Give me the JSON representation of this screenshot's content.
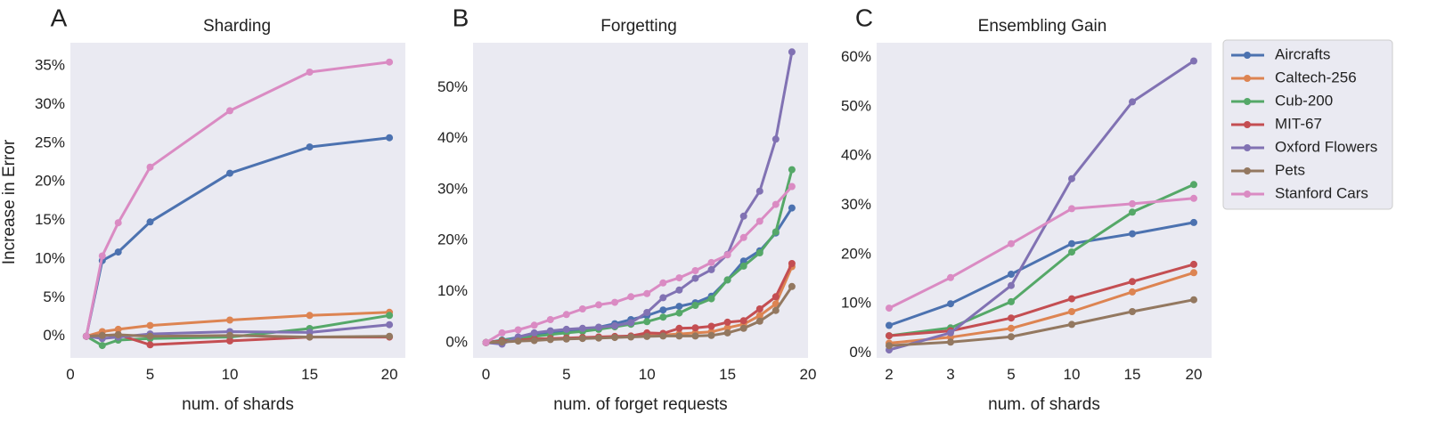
{
  "series_colors": {
    "Aircrafts": "#4c72b0",
    "Caltech-256": "#dd8452",
    "Cub-200": "#55a868",
    "MIT-67": "#c44e52",
    "Oxford Flowers": "#8172b3",
    "Pets": "#937860",
    "Stanford Cars": "#da8bc3"
  },
  "legend": {
    "items": [
      "Aircrafts",
      "Caltech-256",
      "Cub-200",
      "MIT-67",
      "Oxford Flowers",
      "Pets",
      "Stanford Cars"
    ]
  },
  "chart_data": [
    {
      "type": "line",
      "letter": "A",
      "title": "Sharding",
      "xlabel": "num. of shards",
      "ylabel": "Increase in Error",
      "x_scale": "linear",
      "xlim": [
        0,
        21
      ],
      "ylim": [
        -2.8,
        38
      ],
      "xticks": [
        0,
        5,
        10,
        15,
        20
      ],
      "yticks": [
        0,
        5,
        10,
        15,
        20,
        25,
        30,
        35
      ],
      "ytick_labels": [
        "0%",
        "5%",
        "10%",
        "15%",
        "20%",
        "25%",
        "30%",
        "35%"
      ],
      "grid": false,
      "series": [
        {
          "name": "Aircrafts",
          "x": [
            1,
            2,
            3,
            5,
            10,
            15,
            20
          ],
          "values": [
            0,
            9.8,
            10.9,
            14.8,
            21.1,
            24.5,
            25.7
          ]
        },
        {
          "name": "Caltech-256",
          "x": [
            1,
            2,
            3,
            5,
            10,
            15,
            20
          ],
          "values": [
            0,
            0.6,
            0.9,
            1.4,
            2.1,
            2.7,
            3.1
          ]
        },
        {
          "name": "Cub-200",
          "x": [
            1,
            2,
            3,
            5,
            10,
            15,
            20
          ],
          "values": [
            0,
            -1.2,
            -0.5,
            -0.3,
            -0.1,
            1.0,
            2.7
          ]
        },
        {
          "name": "MIT-67",
          "x": [
            1,
            2,
            3,
            5,
            10,
            15,
            20
          ],
          "values": [
            0,
            0.1,
            0.2,
            -1.1,
            -0.6,
            -0.1,
            -0.1
          ]
        },
        {
          "name": "Oxford Flowers",
          "x": [
            1,
            2,
            3,
            5,
            10,
            15,
            20
          ],
          "values": [
            0,
            -0.3,
            -0.1,
            0.3,
            0.6,
            0.5,
            1.5
          ]
        },
        {
          "name": "Pets",
          "x": [
            1,
            2,
            3,
            5,
            10,
            15,
            20
          ],
          "values": [
            0,
            0.1,
            0.2,
            0.0,
            0.1,
            -0.1,
            0.0
          ]
        },
        {
          "name": "Stanford Cars",
          "x": [
            1,
            2,
            3,
            5,
            10,
            15,
            20
          ],
          "values": [
            0,
            10.4,
            14.7,
            21.9,
            29.2,
            34.2,
            35.5
          ]
        }
      ]
    },
    {
      "type": "line",
      "letter": "B",
      "title": "Forgetting",
      "xlabel": "num. of forget requests",
      "ylabel": "",
      "x_scale": "linear",
      "xlim": [
        -0.8,
        20
      ],
      "ylim": [
        -3,
        58.8
      ],
      "xticks": [
        0,
        5,
        10,
        15,
        20
      ],
      "yticks": [
        0,
        10,
        20,
        30,
        40,
        50
      ],
      "ytick_labels": [
        "0%",
        "10%",
        "20%",
        "30%",
        "40%",
        "50%"
      ],
      "grid": false,
      "series": [
        {
          "name": "Aircrafts",
          "x": [
            0,
            1,
            2,
            3,
            4,
            5,
            6,
            7,
            8,
            9,
            10,
            11,
            12,
            13,
            14,
            15,
            16,
            17,
            18,
            19
          ],
          "values": [
            0,
            0.5,
            1.0,
            1.5,
            2.0,
            2.3,
            2.6,
            3.0,
            3.7,
            4.5,
            5.3,
            6.4,
            7.1,
            7.8,
            9.1,
            12.3,
            16.0,
            18.0,
            21.5,
            26.4
          ]
        },
        {
          "name": "Caltech-256",
          "x": [
            0,
            1,
            2,
            3,
            4,
            5,
            6,
            7,
            8,
            9,
            10,
            11,
            12,
            13,
            14,
            15,
            16,
            17,
            18,
            19
          ],
          "values": [
            0,
            0.2,
            0.4,
            0.5,
            0.7,
            0.8,
            0.9,
            1.0,
            1.1,
            1.2,
            1.4,
            1.5,
            1.7,
            1.9,
            2.1,
            2.9,
            3.6,
            5.3,
            7.6,
            14.9
          ]
        },
        {
          "name": "Cub-200",
          "x": [
            0,
            1,
            2,
            3,
            4,
            5,
            6,
            7,
            8,
            9,
            10,
            11,
            12,
            13,
            14,
            15,
            16,
            17,
            18,
            19
          ],
          "values": [
            0,
            0.4,
            0.8,
            1.2,
            1.6,
            1.9,
            2.2,
            2.6,
            3.1,
            3.6,
            4.1,
            5.0,
            5.8,
            7.3,
            8.6,
            12.3,
            15.0,
            17.6,
            21.7,
            33.9
          ]
        },
        {
          "name": "MIT-67",
          "x": [
            0,
            1,
            2,
            3,
            4,
            5,
            6,
            7,
            8,
            9,
            10,
            11,
            12,
            13,
            14,
            15,
            16,
            17,
            18,
            19
          ],
          "values": [
            0,
            0.3,
            0.5,
            0.7,
            0.8,
            0.9,
            1.0,
            1.1,
            1.2,
            1.3,
            1.9,
            1.8,
            2.8,
            2.9,
            3.2,
            4.0,
            4.3,
            6.6,
            9.0,
            15.5
          ]
        },
        {
          "name": "Oxford Flowers",
          "x": [
            0,
            1,
            2,
            3,
            4,
            5,
            6,
            7,
            8,
            9,
            10,
            11,
            12,
            13,
            14,
            15,
            16,
            17,
            18,
            19
          ],
          "values": [
            0,
            -0.3,
            1.1,
            1.9,
            2.3,
            2.6,
            2.8,
            3.0,
            3.3,
            3.9,
            5.9,
            8.8,
            10.3,
            12.6,
            14.3,
            17.3,
            24.8,
            29.7,
            39.9,
            57.0
          ]
        },
        {
          "name": "Pets",
          "x": [
            0,
            1,
            2,
            3,
            4,
            5,
            6,
            7,
            8,
            9,
            10,
            11,
            12,
            13,
            14,
            15,
            16,
            17,
            18,
            19
          ],
          "values": [
            0,
            0.1,
            0.3,
            0.4,
            0.6,
            0.7,
            0.8,
            0.9,
            1.0,
            1.1,
            1.2,
            1.3,
            1.3,
            1.3,
            1.4,
            1.9,
            2.8,
            4.2,
            6.3,
            11.0
          ]
        },
        {
          "name": "Stanford Cars",
          "x": [
            0,
            1,
            2,
            3,
            4,
            5,
            6,
            7,
            8,
            9,
            10,
            11,
            12,
            13,
            14,
            15,
            16,
            17,
            18,
            19
          ],
          "values": [
            0,
            1.9,
            2.5,
            3.4,
            4.5,
            5.5,
            6.6,
            7.4,
            7.9,
            9.0,
            9.6,
            11.7,
            12.7,
            14.1,
            15.7,
            17.2,
            20.6,
            23.8,
            27.1,
            30.6
          ]
        }
      ]
    },
    {
      "type": "line",
      "letter": "C",
      "title": "Ensembling Gain",
      "xlabel": "num. of shards",
      "ylabel": "",
      "x_scale": "categorical",
      "categories": [
        "2",
        "3",
        "5",
        "10",
        "15",
        "20"
      ],
      "ylim": [
        -1,
        63
      ],
      "yticks": [
        0,
        10,
        20,
        30,
        40,
        50,
        60
      ],
      "ytick_labels": [
        "0%",
        "10%",
        "20%",
        "30%",
        "40%",
        "50%",
        "60%"
      ],
      "grid": false,
      "series": [
        {
          "name": "Aircrafts",
          "values": [
            5.6,
            10.0,
            16.0,
            22.2,
            24.2,
            26.5
          ]
        },
        {
          "name": "Caltech-256",
          "values": [
            2.0,
            3.2,
            5.0,
            8.4,
            12.4,
            16.3
          ]
        },
        {
          "name": "Cub-200",
          "values": [
            3.5,
            5.1,
            10.4,
            20.5,
            28.6,
            34.2
          ]
        },
        {
          "name": "MIT-67",
          "values": [
            3.5,
            4.5,
            7.1,
            11.0,
            14.5,
            18.0
          ]
        },
        {
          "name": "Oxford Flowers",
          "values": [
            0.6,
            4.1,
            13.7,
            35.4,
            51.0,
            59.3
          ]
        },
        {
          "name": "Pets",
          "values": [
            1.5,
            2.2,
            3.3,
            5.8,
            8.4,
            10.8
          ]
        },
        {
          "name": "Stanford Cars",
          "values": [
            9.1,
            15.3,
            22.2,
            29.3,
            30.3,
            31.4
          ]
        }
      ]
    }
  ]
}
